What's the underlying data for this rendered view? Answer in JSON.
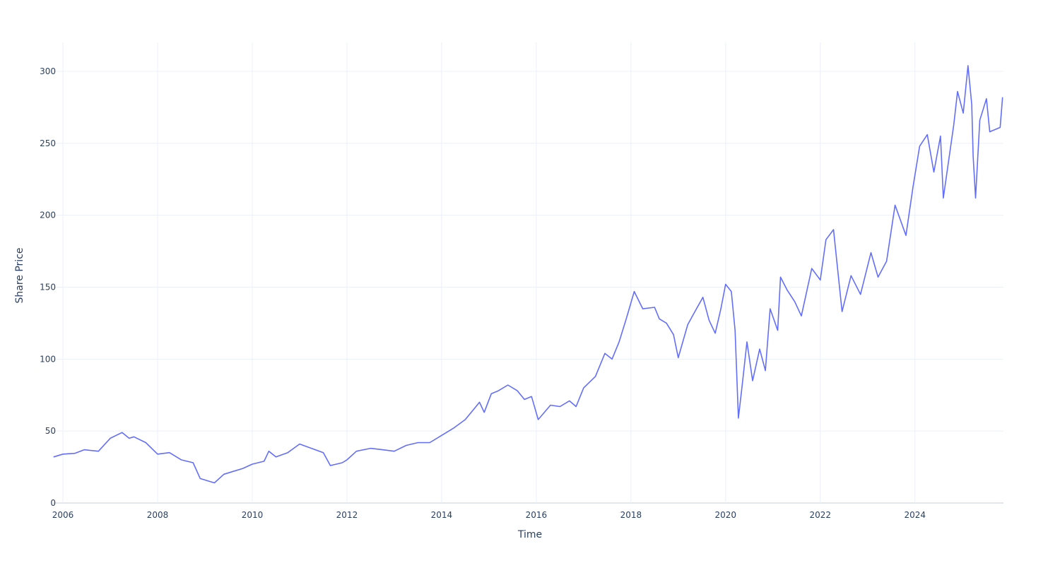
{
  "chart_data": {
    "type": "line",
    "title": "",
    "xlabel": "Time",
    "ylabel": "Share Price",
    "xlim": [
      2005.79,
      2025.87
    ],
    "ylim": [
      0,
      320
    ],
    "grid": true,
    "line_color": "#636efa",
    "grid_color": "#ebf0f8",
    "x_ticks": [
      2006,
      2008,
      2010,
      2012,
      2014,
      2016,
      2018,
      2020,
      2022,
      2024
    ],
    "x_tick_labels": [
      "2006",
      "2008",
      "2010",
      "2012",
      "2014",
      "2016",
      "2018",
      "2020",
      "2022",
      "2024"
    ],
    "y_ticks": [
      0,
      50,
      100,
      150,
      200,
      250,
      300
    ],
    "y_tick_labels": [
      "0",
      "50",
      "100",
      "150",
      "200",
      "250",
      "300"
    ],
    "series": [
      {
        "name": "Share Price",
        "x": [
          2005.8,
          2006.0,
          2006.25,
          2006.45,
          2006.75,
          2007.0,
          2007.25,
          2007.4,
          2007.5,
          2007.75,
          2008.0,
          2008.25,
          2008.5,
          2008.75,
          2008.9,
          2009.0,
          2009.2,
          2009.4,
          2009.6,
          2009.8,
          2010.0,
          2010.25,
          2010.35,
          2010.5,
          2010.75,
          2011.0,
          2011.25,
          2011.5,
          2011.65,
          2011.9,
          2012.0,
          2012.2,
          2012.5,
          2012.75,
          2013.0,
          2013.25,
          2013.5,
          2013.75,
          2014.0,
          2014.25,
          2014.5,
          2014.7,
          2014.8,
          2014.9,
          2015.05,
          2015.2,
          2015.4,
          2015.6,
          2015.75,
          2015.9,
          2016.04,
          2016.3,
          2016.5,
          2016.7,
          2016.84,
          2017.0,
          2017.25,
          2017.45,
          2017.6,
          2017.75,
          2017.9,
          2018.07,
          2018.25,
          2018.5,
          2018.6,
          2018.75,
          2018.9,
          2019.0,
          2019.2,
          2019.35,
          2019.52,
          2019.65,
          2019.78,
          2019.9,
          2020.0,
          2020.12,
          2020.2,
          2020.27,
          2020.35,
          2020.45,
          2020.57,
          2020.72,
          2020.84,
          2020.94,
          2021.1,
          2021.16,
          2021.3,
          2021.46,
          2021.6,
          2021.82,
          2022.0,
          2022.12,
          2022.28,
          2022.46,
          2022.65,
          2022.85,
          2023.07,
          2023.22,
          2023.4,
          2023.58,
          2023.81,
          2023.96,
          2024.1,
          2024.26,
          2024.4,
          2024.54,
          2024.6,
          2024.82,
          2024.9,
          2025.02,
          2025.12,
          2025.2,
          2025.23,
          2025.28,
          2025.37,
          2025.51,
          2025.58,
          2025.8,
          2025.85
        ],
        "y": [
          32,
          34,
          34.5,
          37,
          36,
          45,
          49,
          45,
          46,
          42,
          34,
          35,
          30,
          28,
          17,
          16,
          14,
          20,
          22,
          24,
          27,
          29,
          36,
          32,
          35,
          41,
          38,
          35,
          26,
          28,
          30,
          36,
          38,
          37,
          36,
          40,
          42,
          42,
          47,
          52,
          58,
          66,
          70,
          63,
          76,
          78,
          82,
          78,
          72,
          74,
          58,
          68,
          67,
          71,
          67,
          80,
          88,
          104,
          100,
          112,
          128,
          147,
          135,
          136,
          128,
          125,
          117,
          101,
          124,
          133,
          143,
          127,
          118,
          135,
          152,
          147,
          120,
          59,
          82,
          112,
          85,
          107,
          92,
          135,
          120,
          157,
          148,
          140,
          130,
          163,
          155,
          183,
          190,
          133,
          158,
          145,
          174,
          157,
          168,
          207,
          186,
          220,
          248,
          256,
          230,
          255,
          212,
          263,
          286,
          271,
          304,
          277,
          241,
          212,
          266,
          281,
          258,
          261,
          282
        ]
      }
    ]
  }
}
